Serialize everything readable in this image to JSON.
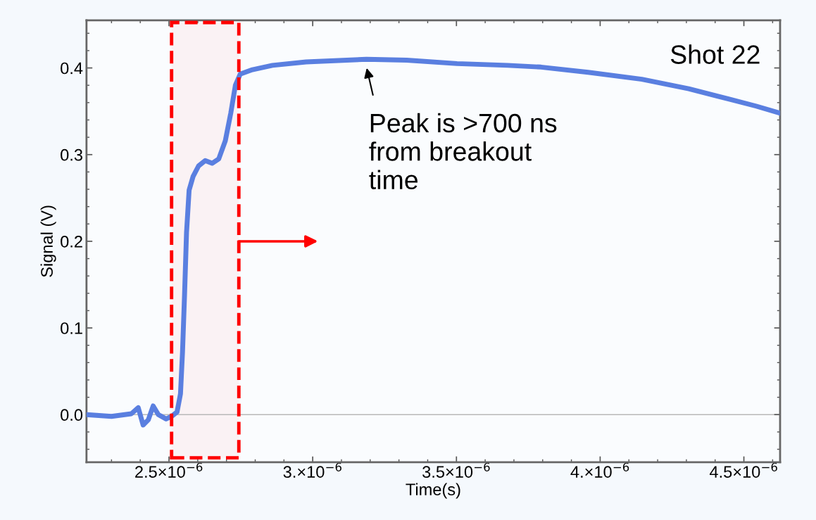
{
  "chart_data": {
    "type": "line",
    "xlabel": "Time(s)",
    "ylabel": "Signal (V)",
    "x": [
      2.213e-06,
      2.3e-06,
      2.369e-06,
      2.393e-06,
      2.41e-06,
      2.428e-06,
      2.445e-06,
      2.463e-06,
      2.49e-06,
      2.509e-06,
      2.528e-06,
      2.54e-06,
      2.547e-06,
      2.554e-06,
      2.561e-06,
      2.57e-06,
      2.584e-06,
      2.603e-06,
      2.626e-06,
      2.65e-06,
      2.673e-06,
      2.696e-06,
      2.715e-06,
      2.731e-06,
      2.748e-06,
      2.79e-06,
      2.86e-06,
      2.977e-06,
      3.187e-06,
      3.327e-06,
      3.502e-06,
      3.678e-06,
      3.794e-06,
      3.958e-06,
      4.145e-06,
      4.308e-06,
      4.449e-06,
      4.542e-06,
      4.624e-06
    ],
    "series": [
      {
        "color": "#5a7fe0",
        "values": [
          0.0,
          -0.002,
          0.001,
          0.008,
          -0.012,
          -0.006,
          0.01,
          0.0,
          -0.005,
          -0.002,
          0.003,
          0.024,
          0.072,
          0.137,
          0.21,
          0.259,
          0.275,
          0.287,
          0.293,
          0.29,
          0.295,
          0.316,
          0.348,
          0.38,
          0.393,
          0.398,
          0.403,
          0.407,
          0.41,
          0.409,
          0.405,
          0.403,
          0.401,
          0.395,
          0.387,
          0.376,
          0.364,
          0.356,
          0.348
        ]
      }
    ],
    "xlim": [
      2.213e-06,
      4.626e-06
    ],
    "ylim": [
      -0.055,
      0.455
    ],
    "xticks": [
      {
        "value": 2.5e-06,
        "label": "2.5×10$^{−6}$"
      },
      {
        "value": 3e-06,
        "label": "3.×10$^{−6}$"
      },
      {
        "value": 3.5e-06,
        "label": "3.5×10$^{−6}$"
      },
      {
        "value": 4e-06,
        "label": "4.×10$^{−6}$"
      },
      {
        "value": 4.5e-06,
        "label": "4.5×10$^{−6}$"
      }
    ],
    "yticks": [
      {
        "value": 0,
        "label": "0.0"
      },
      {
        "value": 0.1,
        "label": "0.1"
      },
      {
        "value": 0.2,
        "label": "0.2"
      },
      {
        "value": 0.3,
        "label": "0.3"
      },
      {
        "value": 0.4,
        "label": "0.4"
      }
    ],
    "ref_lines": [
      {
        "axis": "y",
        "value": 0,
        "color": "#b8b8b8"
      }
    ],
    "bands": [
      {
        "axis": "x",
        "from": 2.509e-06,
        "to": 2.743e-06,
        "color": "#ff0000"
      }
    ],
    "annotations": [
      "Peak is >700 ns\nfrom breakout\ntime",
      "Shot 22"
    ],
    "grid": false,
    "legend": false,
    "marker": "none",
    "line_style": "solid"
  }
}
